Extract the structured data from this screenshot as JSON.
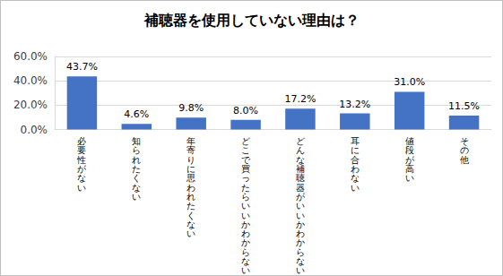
{
  "chart_data": {
    "type": "bar",
    "title": "補聴器を使用していない理由は？",
    "categories": [
      "必要性がない",
      "知られたくない",
      "年寄りに思われたくない",
      "どこで買ったらいいかわからない",
      "どんな補聴器がいいかわからない",
      "耳に合わない",
      "値段が高い",
      "その他"
    ],
    "values": [
      43.7,
      4.6,
      9.8,
      8.0,
      17.2,
      13.2,
      31.0,
      11.5
    ],
    "value_labels": [
      "43.7%",
      "4.6%",
      "9.8%",
      "8.0%",
      "17.2%",
      "13.2%",
      "31.0%",
      "11.5%"
    ],
    "color": "#4472c4",
    "ylim": [
      0,
      60
    ],
    "yticks": [
      {
        "value": 0,
        "label": "0.0%"
      },
      {
        "value": 20,
        "label": "20.0%"
      },
      {
        "value": 40,
        "label": "40.0%"
      },
      {
        "value": 60,
        "label": "60.0%"
      }
    ],
    "grid": true,
    "data_labels": true
  }
}
